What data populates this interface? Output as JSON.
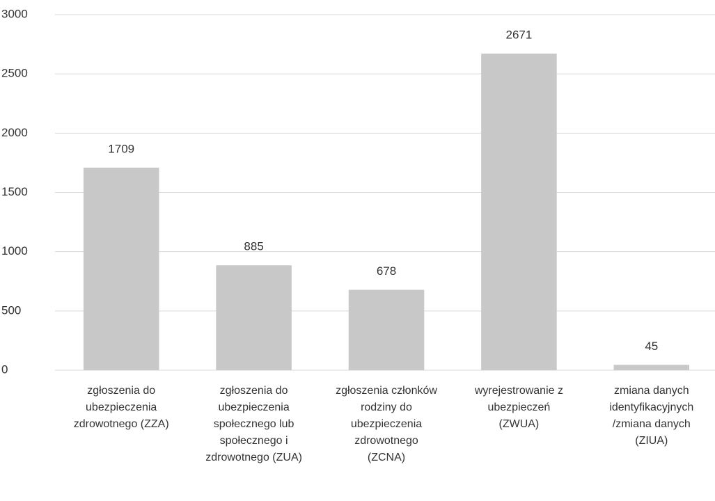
{
  "chart_data": {
    "type": "bar",
    "categories": [
      "zgłoszenia do ubezpieczenia zdrowotnego (ZZA)",
      "zgłoszenia do ubezpieczenia społecznego lub społecznego i zdrowotnego (ZUA)",
      "zgłoszenia członków rodziny do ubezpieczenia zdrowotnego (ZCNA)",
      "wyrejestrowanie z ubezpieczeń (ZWUA)",
      "zmiana danych identyfikacyjnych /zmiana danych (ZIUA)"
    ],
    "values": [
      1709,
      885,
      678,
      2671,
      45
    ],
    "color": "#c8c8c8",
    "ylim": [
      0,
      3000
    ],
    "yticks": [
      0,
      500,
      1000,
      1500,
      2000,
      2500,
      3000
    ],
    "grid": true
  }
}
